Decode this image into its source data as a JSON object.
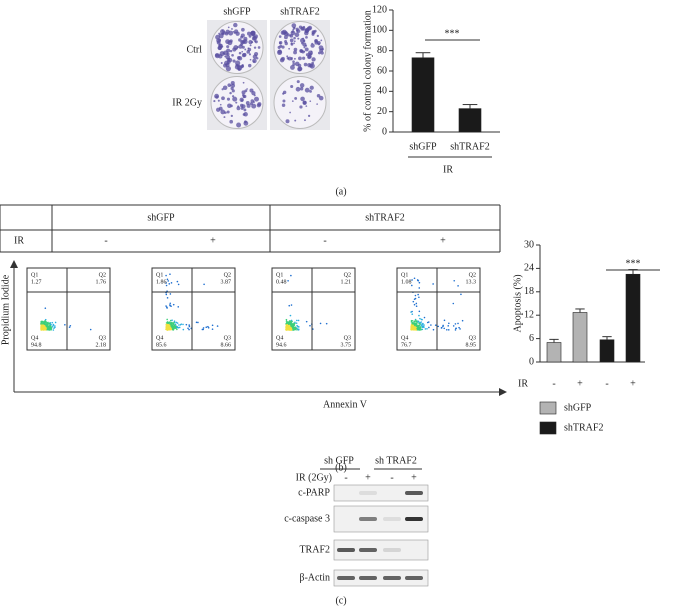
{
  "panel_a": {
    "plate_columns": [
      "shGFP",
      "shTRAF2"
    ],
    "plate_rows": [
      "Ctrl",
      "IR 2Gy"
    ],
    "caption": "(a)"
  },
  "chart_data": [
    {
      "type": "bar",
      "ylabel": "% of control colony formation",
      "categories": [
        "shGFP",
        "shTRAF2"
      ],
      "values": [
        73,
        23
      ],
      "errors": [
        5,
        4
      ],
      "color": "#1a1a1a",
      "xlabel": "IR",
      "ylim": [
        0,
        120
      ],
      "yticks": [
        0,
        20,
        40,
        60,
        80,
        100,
        120
      ],
      "significance": "***"
    },
    {
      "type": "grouped-bar",
      "ylabel": "Apoptosis (%)",
      "row_label": "IR",
      "categories": [
        "-",
        "+",
        "-",
        "+"
      ],
      "series": [
        {
          "name": "shGFP",
          "color": "#b3b3b3",
          "values": [
            5,
            12.7,
            null,
            null
          ],
          "errors": [
            0.8,
            0.9,
            null,
            null
          ]
        },
        {
          "name": "shTRAF2",
          "color": "#1a1a1a",
          "values": [
            null,
            null,
            5.7,
            22.5
          ],
          "errors": [
            null,
            null,
            0.8,
            1.2
          ]
        }
      ],
      "ylim": [
        0,
        30
      ],
      "yticks": [
        0,
        6,
        12,
        18,
        24,
        30
      ],
      "significance": "***"
    }
  ],
  "panel_b": {
    "groups": [
      "shGFP",
      "shTRAF2"
    ],
    "row_label": "IR",
    "conditions": [
      "-",
      "+",
      "-",
      "+"
    ],
    "y_axis": "Propidium Iodide",
    "x_axis": "Annexin V",
    "plots": [
      {
        "q1": [
          "Q1",
          "1.27"
        ],
        "q2": [
          "Q2",
          "1.76"
        ],
        "q4": [
          "Q4",
          "94.8"
        ],
        "q3": [
          "Q3",
          "2.18"
        ]
      },
      {
        "q1": [
          "Q1",
          "1.86"
        ],
        "q2": [
          "Q2",
          "3.87"
        ],
        "q4": [
          "Q4",
          "85.6"
        ],
        "q3": [
          "Q3",
          "8.66"
        ]
      },
      {
        "q1": [
          "Q1",
          "0.48"
        ],
        "q2": [
          "Q2",
          "1.21"
        ],
        "q4": [
          "Q4",
          "94.6"
        ],
        "q3": [
          "Q3",
          "3.75"
        ]
      },
      {
        "q1": [
          "Q1",
          "1.08"
        ],
        "q2": [
          "Q2",
          "13.3"
        ],
        "q4": [
          "Q4",
          "76.7"
        ],
        "q3": [
          "Q3",
          "8.95"
        ]
      }
    ],
    "caption": "(b)"
  },
  "panel_c": {
    "groups": [
      "sh GFP",
      "sh TRAF2"
    ],
    "treatment_label": "IR (2Gy)",
    "treatment": [
      "-",
      "+",
      "-",
      "+"
    ],
    "bands": [
      "c-PARP",
      "c-caspase 3",
      "TRAF2",
      "β-Actin"
    ],
    "caption": "(c)"
  }
}
